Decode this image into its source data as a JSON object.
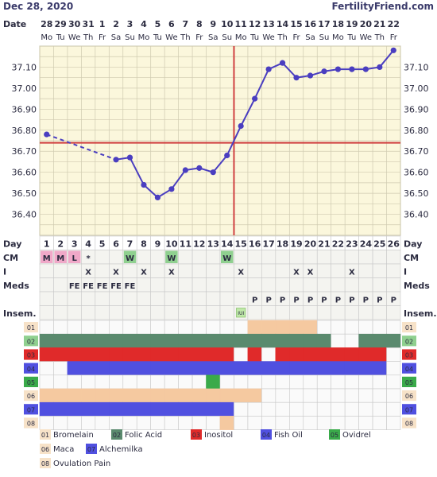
{
  "header": {
    "date": "Dec 28, 2020",
    "site": "FertilityFriend.com",
    "date_label": "Date"
  },
  "chart_data": {
    "type": "line",
    "dates": [
      "28",
      "29",
      "30",
      "31",
      "1",
      "2",
      "3",
      "4",
      "5",
      "6",
      "7",
      "8",
      "9",
      "10",
      "11",
      "12",
      "13",
      "14",
      "15",
      "16",
      "17",
      "18",
      "19",
      "20",
      "21",
      "22"
    ],
    "weekdays": [
      "Mo",
      "Tu",
      "We",
      "Th",
      "Fr",
      "Sa",
      "Su",
      "Mo",
      "Tu",
      "We",
      "Th",
      "Fr",
      "Sa",
      "Su",
      "Mo",
      "Tu",
      "We",
      "Th",
      "Fr",
      "Sa",
      "Su",
      "Mo",
      "Tu",
      "We",
      "Th",
      "Fr"
    ],
    "cycle_days": [
      1,
      2,
      3,
      4,
      5,
      6,
      7,
      8,
      9,
      10,
      11,
      12,
      13,
      14,
      15,
      16,
      17,
      18,
      19,
      20,
      21,
      22,
      23,
      24,
      25,
      26
    ],
    "temps": [
      36.78,
      null,
      null,
      null,
      null,
      36.66,
      36.67,
      36.54,
      36.48,
      36.52,
      36.61,
      36.62,
      36.6,
      36.68,
      36.82,
      36.95,
      37.09,
      37.12,
      37.05,
      37.06,
      37.08,
      37.09,
      37.09,
      37.09,
      37.1,
      37.18
    ],
    "y_ticks": [
      "37.10",
      "37.00",
      "36.90",
      "36.80",
      "36.70",
      "36.60",
      "36.50",
      "36.40"
    ],
    "ylim": [
      36.3,
      37.2
    ],
    "coverline": 36.74,
    "ovulation_day": 14
  },
  "rows": {
    "day_label": "Day",
    "cm_label": "CM",
    "i_label": "I",
    "meds_label": "Meds",
    "insem_label": "Insem.",
    "cm": [
      "M",
      "M",
      "L",
      "*",
      "",
      "",
      "W",
      "",
      "",
      "W",
      "",
      "",
      "",
      "W",
      "",
      "",
      "",
      "",
      "",
      "",
      "",
      "",
      "",
      "",
      "",
      ""
    ],
    "intercourse": [
      "",
      "",
      "",
      "X",
      "",
      "X",
      "",
      "X",
      "",
      "X",
      "",
      "",
      "",
      "",
      "X",
      "",
      "",
      "",
      "X",
      "X",
      "",
      "",
      "X",
      "",
      "",
      ""
    ],
    "meds": [
      "",
      "",
      "FE",
      "FE",
      "FE",
      "FE",
      "FE",
      "",
      "",
      "",
      "",
      "",
      "",
      "",
      "",
      "",
      "",
      "",
      "",
      "",
      "",
      "",
      "",
      "",
      "",
      ""
    ],
    "insem": [
      "",
      "",
      "",
      "",
      "",
      "",
      "",
      "",
      "",
      "",
      "",
      "",
      "",
      "",
      "",
      "",
      "",
      "",
      "",
      "",
      "",
      "",
      "",
      "",
      "",
      ""
    ],
    "insem_marks": [
      "",
      "",
      "",
      "",
      "",
      "",
      "",
      "",
      "",
      "",
      "",
      "",
      "",
      "",
      "IUI",
      "",
      "",
      "",
      "",
      "",
      "",
      "",
      "",
      "",
      "",
      ""
    ],
    "p_marks": [
      "",
      "",
      "",
      "",
      "",
      "",
      "",
      "",
      "",
      "",
      "",
      "",
      "",
      "",
      "",
      "P",
      "P",
      "P",
      "P",
      "P",
      "P",
      "P",
      "P",
      "P",
      "P",
      "P"
    ]
  },
  "supplements": [
    {
      "code": "01",
      "name": "Bromelain",
      "color": "#f5c9a0",
      "days": [
        16,
        17,
        18,
        19,
        20
      ]
    },
    {
      "code": "02",
      "name": "Folic Acid",
      "color": "#5a8a6e",
      "days": [
        1,
        2,
        3,
        4,
        5,
        6,
        7,
        8,
        9,
        10,
        11,
        12,
        13,
        14,
        15,
        16,
        17,
        18,
        19,
        20,
        21,
        24,
        25,
        26
      ]
    },
    {
      "code": "03",
      "name": "Inositol",
      "color": "#e02a2a",
      "days": [
        1,
        2,
        3,
        4,
        5,
        6,
        7,
        8,
        9,
        10,
        11,
        12,
        13,
        14,
        16,
        18,
        19,
        20,
        21,
        22,
        23,
        24,
        25
      ]
    },
    {
      "code": "04",
      "name": "Fish Oil",
      "color": "#5050e0",
      "days": [
        3,
        4,
        5,
        6,
        7,
        8,
        9,
        10,
        11,
        12,
        13,
        14,
        15,
        16,
        17,
        18,
        19,
        20,
        21,
        22,
        23,
        24,
        25
      ]
    },
    {
      "code": "05",
      "name": "Ovidrel",
      "color": "#3aaa4a",
      "days": [
        13
      ]
    },
    {
      "code": "06",
      "name": "Maca",
      "color": "#f5c9a0",
      "days": [
        1,
        2,
        3,
        4,
        5,
        6,
        7,
        8,
        9,
        10,
        11,
        12,
        13,
        14,
        15,
        16
      ]
    },
    {
      "code": "07",
      "name": "Alchemilka",
      "color": "#5050e0",
      "days": [
        1,
        2,
        3,
        4,
        5,
        6,
        7,
        8,
        9,
        10,
        11,
        12,
        13,
        14
      ]
    },
    {
      "code": "08",
      "name": "Ovulation Pain",
      "color": "#f5c9a0",
      "days": [
        14
      ]
    }
  ],
  "colors": {
    "chart_bg": "#fbf7dc",
    "grid": "#cfcab0",
    "temp_line": "#4a3ec0",
    "coverline": "#d04040",
    "cm_m": "#f0a8c8",
    "cm_w": "#8fd08f",
    "code_box": "#f7e2c8",
    "row_bg": "#f4f4f0",
    "cell_border": "#c8c8c8"
  }
}
